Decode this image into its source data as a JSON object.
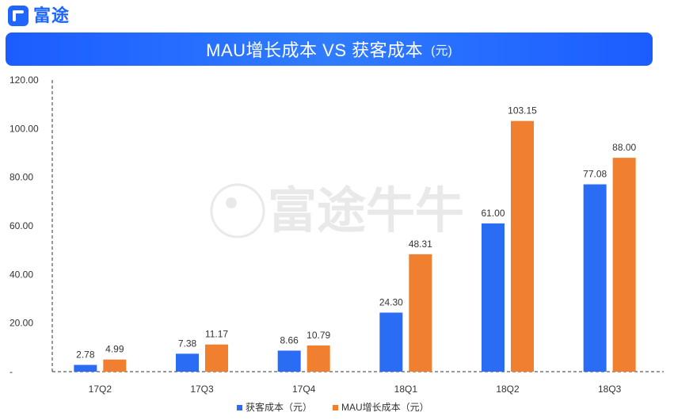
{
  "brand": {
    "logo_text": "富途",
    "watermark_text": "富途牛牛"
  },
  "chart_data": {
    "type": "bar",
    "title": "MAU增长成本 VS 获客成本",
    "subtitle": "(元)",
    "categories": [
      "17Q2",
      "17Q3",
      "17Q4",
      "18Q1",
      "18Q2",
      "18Q3"
    ],
    "series": [
      {
        "name": "获客成本（元）",
        "color": "#2b6cf5",
        "values": [
          2.78,
          7.38,
          8.66,
          24.3,
          61.0,
          77.08
        ],
        "labels": [
          "2.78",
          "7.38",
          "8.66",
          "24.30",
          "61.00",
          "77.08"
        ]
      },
      {
        "name": "MAU增长成本（元）",
        "color": "#f07f2f",
        "values": [
          4.99,
          11.17,
          10.79,
          48.31,
          103.15,
          88.0
        ],
        "labels": [
          "4.99",
          "11.17",
          "10.79",
          "48.31",
          "103.15",
          "88.00"
        ]
      }
    ],
    "ylim": [
      0,
      120
    ],
    "y_ticks": [
      {
        "value": 0,
        "label": "-"
      },
      {
        "value": 20,
        "label": "20.00"
      },
      {
        "value": 40,
        "label": "40.00"
      },
      {
        "value": 60,
        "label": "60.00"
      },
      {
        "value": 80,
        "label": "80.00"
      },
      {
        "value": 100,
        "label": "100.00"
      },
      {
        "value": 120,
        "label": "120.00"
      }
    ],
    "grid": false,
    "legend_position": "bottom"
  }
}
